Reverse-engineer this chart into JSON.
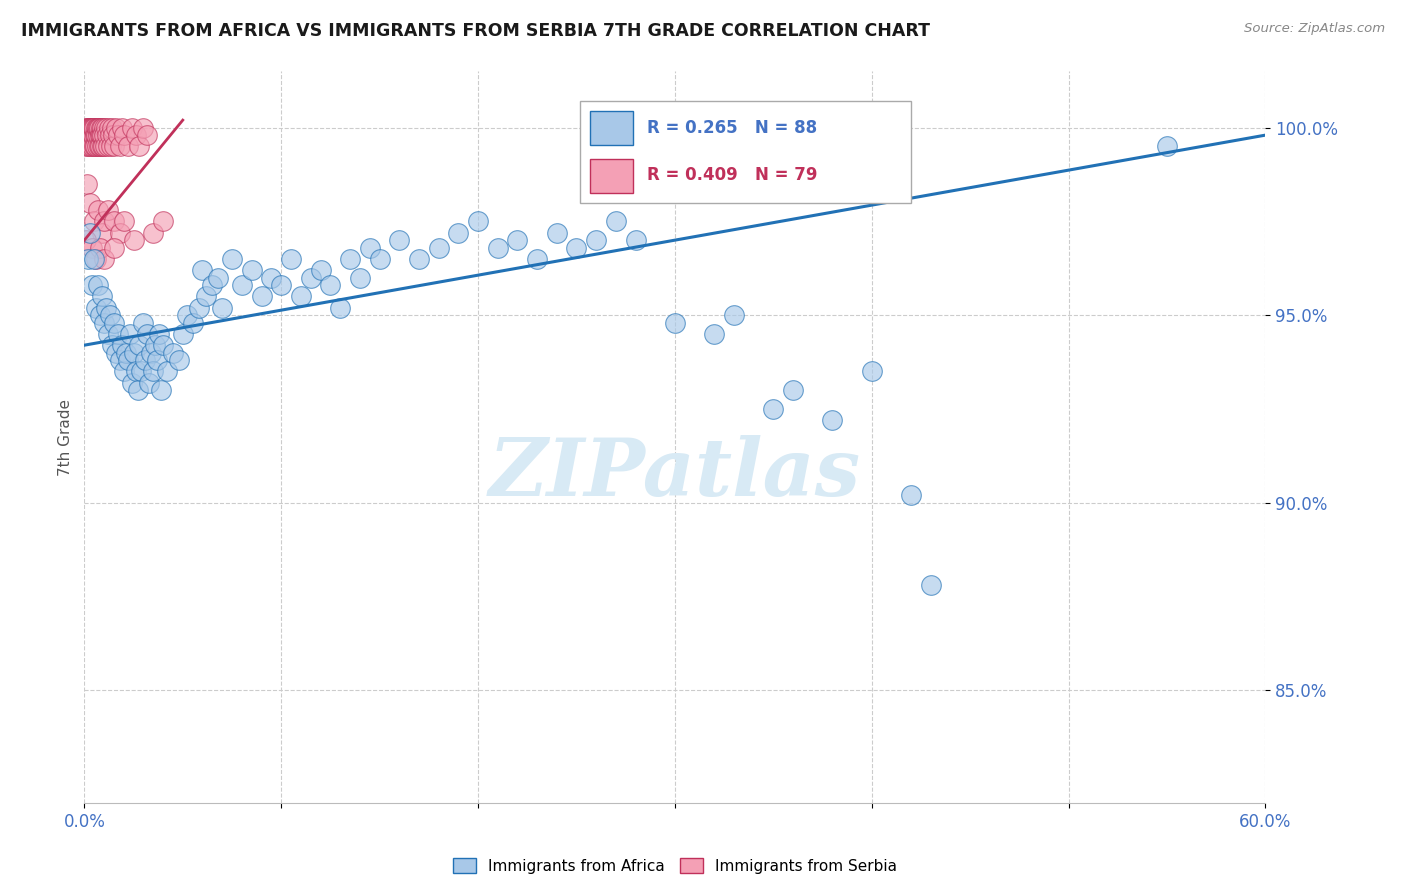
{
  "title": "IMMIGRANTS FROM AFRICA VS IMMIGRANTS FROM SERBIA 7TH GRADE CORRELATION CHART",
  "source": "Source: ZipAtlas.com",
  "ylabel": "7th Grade",
  "ytick_values": [
    85.0,
    90.0,
    95.0,
    100.0
  ],
  "xmin": 0.0,
  "xmax": 60.0,
  "ymin": 82.0,
  "ymax": 101.5,
  "legend_blue_label": "R = 0.265   N = 88",
  "legend_pink_label": "R = 0.409   N = 79",
  "series_blue_label": "Immigrants from Africa",
  "series_pink_label": "Immigrants from Serbia",
  "blue_color": "#a8c8e8",
  "pink_color": "#f4a0b5",
  "trend_blue_color": "#2171b5",
  "trend_pink_color": "#c0305a",
  "watermark": "ZIPatlas",
  "watermark_color": "#d8eaf5",
  "axis_label_color": "#4472c4",
  "blue_scatter": [
    [
      0.2,
      96.5
    ],
    [
      0.3,
      97.2
    ],
    [
      0.4,
      95.8
    ],
    [
      0.5,
      96.5
    ],
    [
      0.6,
      95.2
    ],
    [
      0.7,
      95.8
    ],
    [
      0.8,
      95.0
    ],
    [
      0.9,
      95.5
    ],
    [
      1.0,
      94.8
    ],
    [
      1.1,
      95.2
    ],
    [
      1.2,
      94.5
    ],
    [
      1.3,
      95.0
    ],
    [
      1.4,
      94.2
    ],
    [
      1.5,
      94.8
    ],
    [
      1.6,
      94.0
    ],
    [
      1.7,
      94.5
    ],
    [
      1.8,
      93.8
    ],
    [
      1.9,
      94.2
    ],
    [
      2.0,
      93.5
    ],
    [
      2.1,
      94.0
    ],
    [
      2.2,
      93.8
    ],
    [
      2.3,
      94.5
    ],
    [
      2.4,
      93.2
    ],
    [
      2.5,
      94.0
    ],
    [
      2.6,
      93.5
    ],
    [
      2.7,
      93.0
    ],
    [
      2.8,
      94.2
    ],
    [
      2.9,
      93.5
    ],
    [
      3.0,
      94.8
    ],
    [
      3.1,
      93.8
    ],
    [
      3.2,
      94.5
    ],
    [
      3.3,
      93.2
    ],
    [
      3.4,
      94.0
    ],
    [
      3.5,
      93.5
    ],
    [
      3.6,
      94.2
    ],
    [
      3.7,
      93.8
    ],
    [
      3.8,
      94.5
    ],
    [
      3.9,
      93.0
    ],
    [
      4.0,
      94.2
    ],
    [
      4.2,
      93.5
    ],
    [
      4.5,
      94.0
    ],
    [
      4.8,
      93.8
    ],
    [
      5.0,
      94.5
    ],
    [
      5.2,
      95.0
    ],
    [
      5.5,
      94.8
    ],
    [
      5.8,
      95.2
    ],
    [
      6.0,
      96.2
    ],
    [
      6.2,
      95.5
    ],
    [
      6.5,
      95.8
    ],
    [
      6.8,
      96.0
    ],
    [
      7.0,
      95.2
    ],
    [
      7.5,
      96.5
    ],
    [
      8.0,
      95.8
    ],
    [
      8.5,
      96.2
    ],
    [
      9.0,
      95.5
    ],
    [
      9.5,
      96.0
    ],
    [
      10.0,
      95.8
    ],
    [
      10.5,
      96.5
    ],
    [
      11.0,
      95.5
    ],
    [
      11.5,
      96.0
    ],
    [
      12.0,
      96.2
    ],
    [
      12.5,
      95.8
    ],
    [
      13.0,
      95.2
    ],
    [
      13.5,
      96.5
    ],
    [
      14.0,
      96.0
    ],
    [
      14.5,
      96.8
    ],
    [
      15.0,
      96.5
    ],
    [
      16.0,
      97.0
    ],
    [
      17.0,
      96.5
    ],
    [
      18.0,
      96.8
    ],
    [
      19.0,
      97.2
    ],
    [
      20.0,
      97.5
    ],
    [
      21.0,
      96.8
    ],
    [
      22.0,
      97.0
    ],
    [
      23.0,
      96.5
    ],
    [
      24.0,
      97.2
    ],
    [
      25.0,
      96.8
    ],
    [
      26.0,
      97.0
    ],
    [
      27.0,
      97.5
    ],
    [
      28.0,
      97.0
    ],
    [
      30.0,
      94.8
    ],
    [
      32.0,
      94.5
    ],
    [
      33.0,
      95.0
    ],
    [
      35.0,
      92.5
    ],
    [
      36.0,
      93.0
    ],
    [
      38.0,
      92.2
    ],
    [
      40.0,
      93.5
    ],
    [
      42.0,
      90.2
    ],
    [
      43.0,
      87.8
    ],
    [
      55.0,
      99.5
    ]
  ],
  "pink_scatter": [
    [
      0.05,
      99.8
    ],
    [
      0.08,
      100.0
    ],
    [
      0.1,
      99.5
    ],
    [
      0.12,
      100.0
    ],
    [
      0.15,
      99.8
    ],
    [
      0.18,
      100.0
    ],
    [
      0.2,
      99.5
    ],
    [
      0.22,
      100.0
    ],
    [
      0.25,
      99.8
    ],
    [
      0.28,
      100.0
    ],
    [
      0.3,
      99.5
    ],
    [
      0.32,
      100.0
    ],
    [
      0.35,
      99.8
    ],
    [
      0.38,
      99.5
    ],
    [
      0.4,
      100.0
    ],
    [
      0.42,
      99.8
    ],
    [
      0.45,
      100.0
    ],
    [
      0.48,
      99.5
    ],
    [
      0.5,
      100.0
    ],
    [
      0.52,
      99.8
    ],
    [
      0.55,
      99.5
    ],
    [
      0.58,
      100.0
    ],
    [
      0.6,
      99.8
    ],
    [
      0.62,
      99.5
    ],
    [
      0.65,
      100.0
    ],
    [
      0.68,
      99.8
    ],
    [
      0.7,
      100.0
    ],
    [
      0.72,
      99.5
    ],
    [
      0.75,
      100.0
    ],
    [
      0.78,
      99.8
    ],
    [
      0.8,
      99.5
    ],
    [
      0.82,
      100.0
    ],
    [
      0.85,
      99.8
    ],
    [
      0.88,
      99.5
    ],
    [
      0.9,
      100.0
    ],
    [
      0.92,
      99.8
    ],
    [
      0.95,
      99.5
    ],
    [
      0.98,
      100.0
    ],
    [
      1.0,
      99.8
    ],
    [
      1.05,
      99.5
    ],
    [
      1.1,
      100.0
    ],
    [
      1.15,
      99.8
    ],
    [
      1.2,
      99.5
    ],
    [
      1.25,
      100.0
    ],
    [
      1.3,
      99.8
    ],
    [
      1.35,
      99.5
    ],
    [
      1.4,
      100.0
    ],
    [
      1.45,
      99.8
    ],
    [
      1.5,
      99.5
    ],
    [
      1.6,
      100.0
    ],
    [
      1.7,
      99.8
    ],
    [
      1.8,
      99.5
    ],
    [
      1.9,
      100.0
    ],
    [
      2.0,
      99.8
    ],
    [
      2.2,
      99.5
    ],
    [
      2.4,
      100.0
    ],
    [
      2.6,
      99.8
    ],
    [
      2.8,
      99.5
    ],
    [
      3.0,
      100.0
    ],
    [
      3.2,
      99.8
    ],
    [
      0.15,
      98.5
    ],
    [
      0.3,
      98.0
    ],
    [
      0.5,
      97.5
    ],
    [
      0.7,
      97.8
    ],
    [
      0.9,
      97.2
    ],
    [
      1.0,
      97.5
    ],
    [
      1.2,
      97.8
    ],
    [
      1.5,
      97.5
    ],
    [
      1.8,
      97.2
    ],
    [
      2.0,
      97.5
    ],
    [
      0.1,
      97.0
    ],
    [
      0.4,
      96.8
    ],
    [
      0.6,
      96.5
    ],
    [
      0.8,
      96.8
    ],
    [
      1.0,
      96.5
    ],
    [
      1.5,
      96.8
    ],
    [
      2.5,
      97.0
    ],
    [
      3.5,
      97.2
    ],
    [
      4.0,
      97.5
    ]
  ],
  "blue_trend_x": [
    0.0,
    60.0
  ],
  "blue_trend_y": [
    94.2,
    99.8
  ],
  "pink_trend_x": [
    0.0,
    5.0
  ],
  "pink_trend_y": [
    97.0,
    100.2
  ]
}
